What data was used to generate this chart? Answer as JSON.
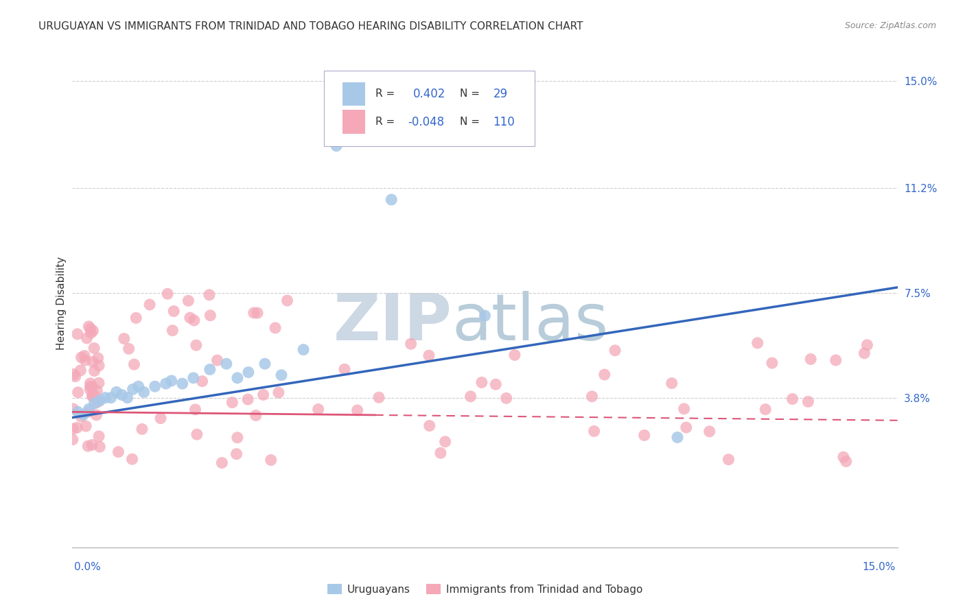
{
  "title": "URUGUAYAN VS IMMIGRANTS FROM TRINIDAD AND TOBAGO HEARING DISABILITY CORRELATION CHART",
  "source": "Source: ZipAtlas.com",
  "ylabel": "Hearing Disability",
  "xmin": 0.0,
  "xmax": 0.15,
  "ymin": -0.015,
  "ymax": 0.158,
  "blue_R": 0.402,
  "blue_N": 29,
  "pink_R": -0.048,
  "pink_N": 110,
  "blue_color": "#a8c8e8",
  "pink_color": "#f4a8b8",
  "blue_line_color": "#3366bb",
  "pink_line_color": "#dd5577",
  "grid_color": "#cccccc",
  "legend_blue_label": "Uruguayans",
  "legend_pink_label": "Immigrants from Trinidad and Tobago",
  "ytick_vals": [
    0.038,
    0.075,
    0.112,
    0.15
  ],
  "ytick_labels": [
    "3.8%",
    "7.5%",
    "11.2%",
    "15.0%"
  ],
  "watermark_zip_color": "#c8d8e8",
  "watermark_atlas_color": "#b8ccd8",
  "axis_label_color": "#3366cc",
  "text_color": "#333333"
}
